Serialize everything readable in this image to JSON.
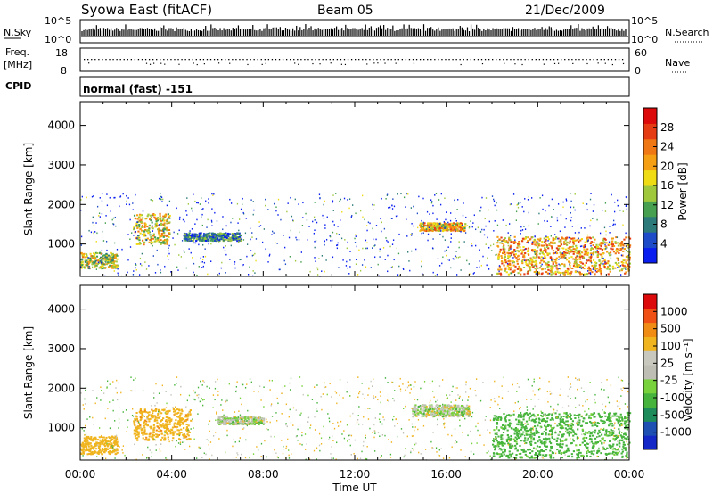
{
  "header": {
    "station": "Syowa East (fitACF)",
    "beam": "Beam 05",
    "date": "21/Dec/2009"
  },
  "panels": {
    "nsky": {
      "left_label": "N.Sky",
      "right_label": "N.Search",
      "left_ticks": [
        "10^5",
        "10^0"
      ],
      "right_ticks": [
        "10^5",
        "10^0"
      ]
    },
    "freq": {
      "left_label_1": "Freq.",
      "left_label_2": "[MHz]",
      "left_ticks": [
        "18",
        "8"
      ],
      "right_label": "Nave",
      "right_ticks": [
        "60",
        "0"
      ]
    },
    "cpid": {
      "left_label": "CPID",
      "mode_text": "normal (fast) -151"
    }
  },
  "colorbars": {
    "power": {
      "label": "Power [dB]",
      "ticks": [
        "28",
        "24",
        "20",
        "16",
        "12",
        "8",
        "4"
      ],
      "colors": [
        "#0a1ef0",
        "#1e4bc8",
        "#2d7a7a",
        "#46a050",
        "#a0c83c",
        "#f0dc14",
        "#f5a014",
        "#f07814",
        "#e63c14",
        "#dc0a0a"
      ]
    },
    "velocity": {
      "label": "Velocity [m s⁻¹]",
      "ticks": [
        "1000",
        "500",
        "100",
        "25",
        "-25",
        "-100",
        "-500",
        "-1000"
      ],
      "colors": [
        "#1428c8",
        "#1e50b4",
        "#1e8c5a",
        "#46b43c",
        "#78d23c",
        "#bebeb4",
        "#c8c8be",
        "#f0b41e",
        "#f08c14",
        "#f05014",
        "#dc0a0a"
      ]
    }
  },
  "chart_data": [
    {
      "type": "heatmap",
      "name": "Power",
      "ylabel": "Slant Range [km]",
      "xlabel": "Time UT",
      "x_ticks": [
        "00:00",
        "04:00",
        "08:00",
        "12:00",
        "16:00",
        "20:00",
        "00:00"
      ],
      "y_ticks": [
        1000,
        2000,
        3000,
        4000
      ],
      "ylim": [
        180,
        4600
      ],
      "xlim_hours": [
        0,
        24
      ],
      "features": [
        {
          "t0": 0.0,
          "t1": 1.6,
          "r0": 400,
          "r1": 800,
          "level": 0.5
        },
        {
          "t0": 2.3,
          "t1": 3.9,
          "r0": 1000,
          "r1": 1800,
          "level": 0.55
        },
        {
          "t0": 4.5,
          "t1": 7.0,
          "r0": 1100,
          "r1": 1300,
          "level": 0.25
        },
        {
          "t0": 14.8,
          "t1": 16.8,
          "r0": 1350,
          "r1": 1550,
          "level": 0.6
        },
        {
          "t0": 18.2,
          "t1": 24.0,
          "r0": 250,
          "r1": 1200,
          "level": 0.65
        },
        {
          "t0": 0.0,
          "t1": 24.0,
          "r0": 200,
          "r1": 2300,
          "level": 0.1
        }
      ]
    },
    {
      "type": "heatmap",
      "name": "Velocity",
      "ylabel": "Slant Range [km]",
      "xlabel": "Time UT",
      "x_ticks": [
        "00:00",
        "04:00",
        "08:00",
        "12:00",
        "16:00",
        "20:00",
        "00:00"
      ],
      "y_ticks": [
        1000,
        2000,
        3000,
        4000
      ],
      "ylim": [
        180,
        4600
      ],
      "xlim_hours": [
        0,
        24
      ],
      "features": [
        {
          "t0": 0.0,
          "t1": 1.6,
          "r0": 350,
          "r1": 800,
          "vel": -300
        },
        {
          "t0": 2.3,
          "t1": 4.8,
          "r0": 700,
          "r1": 1500,
          "vel": -400
        },
        {
          "t0": 6.0,
          "t1": 8.0,
          "r0": 1100,
          "r1": 1300,
          "vel": 0
        },
        {
          "t0": 14.5,
          "t1": 17.0,
          "r0": 1300,
          "r1": 1600,
          "vel": 0
        },
        {
          "t0": 18.0,
          "t1": 24.0,
          "r0": 250,
          "r1": 1400,
          "vel": 200
        },
        {
          "t0": 0.0,
          "t1": 24.0,
          "r0": 200,
          "r1": 2300,
          "vel": -20
        }
      ]
    }
  ]
}
